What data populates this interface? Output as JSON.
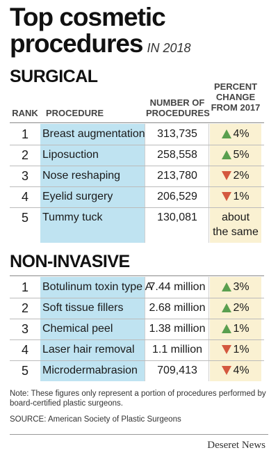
{
  "title_line1": "Top cosmetic",
  "title_line2": "procedures",
  "subtitle": "IN 2018",
  "headers": {
    "rank": "RANK",
    "procedure": "PROCEDURE",
    "number_l1": "NUMBER OF",
    "number_l2": "PROCEDURES",
    "pct_l1": "PERCENT",
    "pct_l2": "CHANGE",
    "pct_l3": "FROM 2017"
  },
  "sections": {
    "surgical": "SURGICAL",
    "noninvasive": "NON-INVASIVE"
  },
  "chart_data": {
    "type": "table",
    "columns": [
      "RANK",
      "PROCEDURE",
      "NUMBER OF PROCEDURES",
      "PERCENT CHANGE FROM 2017"
    ],
    "surgical": [
      {
        "rank": "1",
        "procedure": "Breast augmentation",
        "number": "313,735",
        "direction": "up",
        "change": "4%"
      },
      {
        "rank": "2",
        "procedure": "Liposuction",
        "number": "258,558",
        "direction": "up",
        "change": "5%"
      },
      {
        "rank": "3",
        "procedure": "Nose reshaping",
        "number": "213,780",
        "direction": "down",
        "change": "2%"
      },
      {
        "rank": "4",
        "procedure": "Eyelid surgery",
        "number": "206,529",
        "direction": "down",
        "change": "1%"
      },
      {
        "rank": "5",
        "procedure": "Tummy tuck",
        "number": "130,081",
        "direction": "same",
        "change": "about",
        "change2": "the same"
      }
    ],
    "noninvasive": [
      {
        "rank": "1",
        "procedure": "Botulinum toxin type A",
        "number": "7.44 million",
        "direction": "up",
        "change": "3%"
      },
      {
        "rank": "2",
        "procedure": "Soft tissue fillers",
        "number": "2.68 million",
        "direction": "up",
        "change": "2%"
      },
      {
        "rank": "3",
        "procedure": "Chemical peel",
        "number": "1.38 million",
        "direction": "up",
        "change": "1%"
      },
      {
        "rank": "4",
        "procedure": "Laser hair removal",
        "number": "1.1 million",
        "direction": "down",
        "change": "1%"
      },
      {
        "rank": "5",
        "procedure": "Microdermabrasion",
        "number": "709,413",
        "direction": "down",
        "change": "4%"
      }
    ]
  },
  "note_l1": "Note: These figures only represent a portion of procedures performed by",
  "note_l2": "board-certified plastic surgeons.",
  "source": "SOURCE: American Society of Plastic Surgeons",
  "publisher": "Deseret News",
  "colors": {
    "up": "#5a9f4f",
    "down": "#d4583f",
    "procedure_bg": "#bfe3f1",
    "change_bg": "#faf1d2"
  }
}
